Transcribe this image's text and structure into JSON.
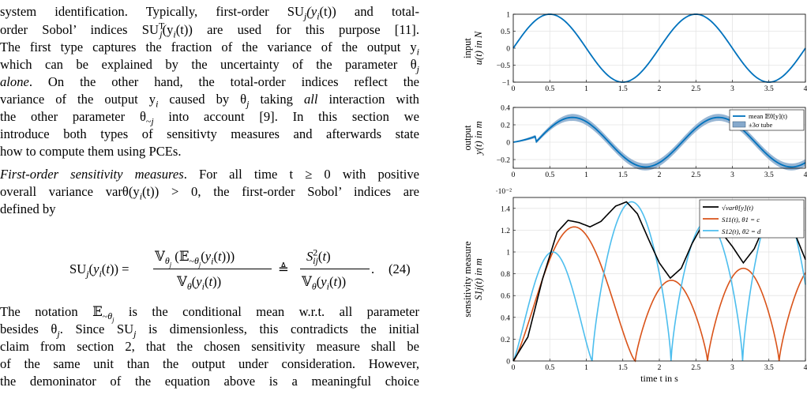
{
  "text": {
    "l1": "system identification. Typically, first-order SU",
    "l1b": "(y",
    "l1c": "(t)) and total-",
    "l2a": "order Sobol’ indices SU",
    "l2b": "(y",
    "l2c": "(t)) are used for this purpose [11].",
    "l3": "The first type captures the fraction of the variance of the output y",
    "l4": "which can be explained by the uncertainty of the parameter θ",
    "l5a": "alone",
    "l5b": ". On the other hand, the total-order indices reflect the",
    "l6a": "variance of the output y",
    "l6b": " caused by θ",
    "l6c": " taking ",
    "l6d": "all",
    "l6e": " interaction with",
    "l7": "the other parameter θ",
    "l7b": " into account [9]. In this section we",
    "l8": "introduce both types of sensitivty measures and afterwards state",
    "l9": "how to compute them using PCEs.",
    "l10a": "First-order sensitivity measures",
    "l10b": ". For all time t ≥ 0 with positive",
    "l11": "overall variance varθ(y",
    "l11b": "(t)) > 0, the first-order Sobol’ indices are",
    "l12": "defined by",
    "eq_number": "(24)",
    "l13a": "The notation 𝔼",
    "l13b": " is the conditional mean w.r.t. all parameter",
    "l14a": "besides θ",
    "l14b": ". Since SU",
    "l14c": " is dimensionless, this contradicts the initial",
    "l15": "claim from section 2, that the chosen sensitivity measure shall be",
    "l16": "of the same unit than the output under consideration. However,",
    "l17": "the demoninator of the equation above is a meaningful choice"
  },
  "chart_data": [
    {
      "type": "line",
      "ylabel": "input u(t) in N",
      "xlim": [
        0,
        4
      ],
      "ylim": [
        -1,
        1
      ],
      "xticks": [
        "0",
        "0.5",
        "1",
        "1.5",
        "2",
        "2.5",
        "3",
        "3.5",
        "4"
      ],
      "yticks": [
        "−1",
        "−0.5",
        "0",
        "0.5",
        "1"
      ],
      "grid": true,
      "series": [
        {
          "name": "",
          "color": "#0072bd",
          "function": "sin(pi*t)"
        }
      ]
    },
    {
      "type": "area",
      "ylabel": "output y(t) in m",
      "xlim": [
        0,
        4
      ],
      "ylim": [
        -0.3,
        0.4
      ],
      "xticks": [
        "0",
        "0.5",
        "1",
        "1.5",
        "2",
        "2.5",
        "3",
        "3.5",
        "4"
      ],
      "yticks": [
        "−0.2",
        "0",
        "0.2",
        "0.4"
      ],
      "grid": true,
      "legend": "top-right",
      "series": [
        {
          "name": "mean 𝔼θ[y](t)",
          "color": "#0072bd"
        },
        {
          "name": "±3σ tube",
          "color": "#86a9cc"
        }
      ]
    },
    {
      "type": "line",
      "ylabel": "sensitivity measure S1j(t) in m",
      "xlabel": "time t in s",
      "exponent_label": "·10⁻²",
      "xlim": [
        0,
        4
      ],
      "ylim": [
        0,
        1.5
      ],
      "xticks": [
        "0",
        "0.5",
        "1",
        "1.5",
        "2",
        "2.5",
        "3",
        "3.5",
        "4"
      ],
      "yticks": [
        "0",
        "0.2",
        "0.4",
        "0.6",
        "0.8",
        "1",
        "1.2",
        "1.4"
      ],
      "grid": true,
      "legend": "top-right",
      "series": [
        {
          "name": "√varθ[y](t)",
          "color": "#000000"
        },
        {
          "name": "S11(t), θ1 = c",
          "color": "#d95319"
        },
        {
          "name": "S12(t), θ2 = d",
          "color": "#4dbeee"
        }
      ]
    }
  ]
}
